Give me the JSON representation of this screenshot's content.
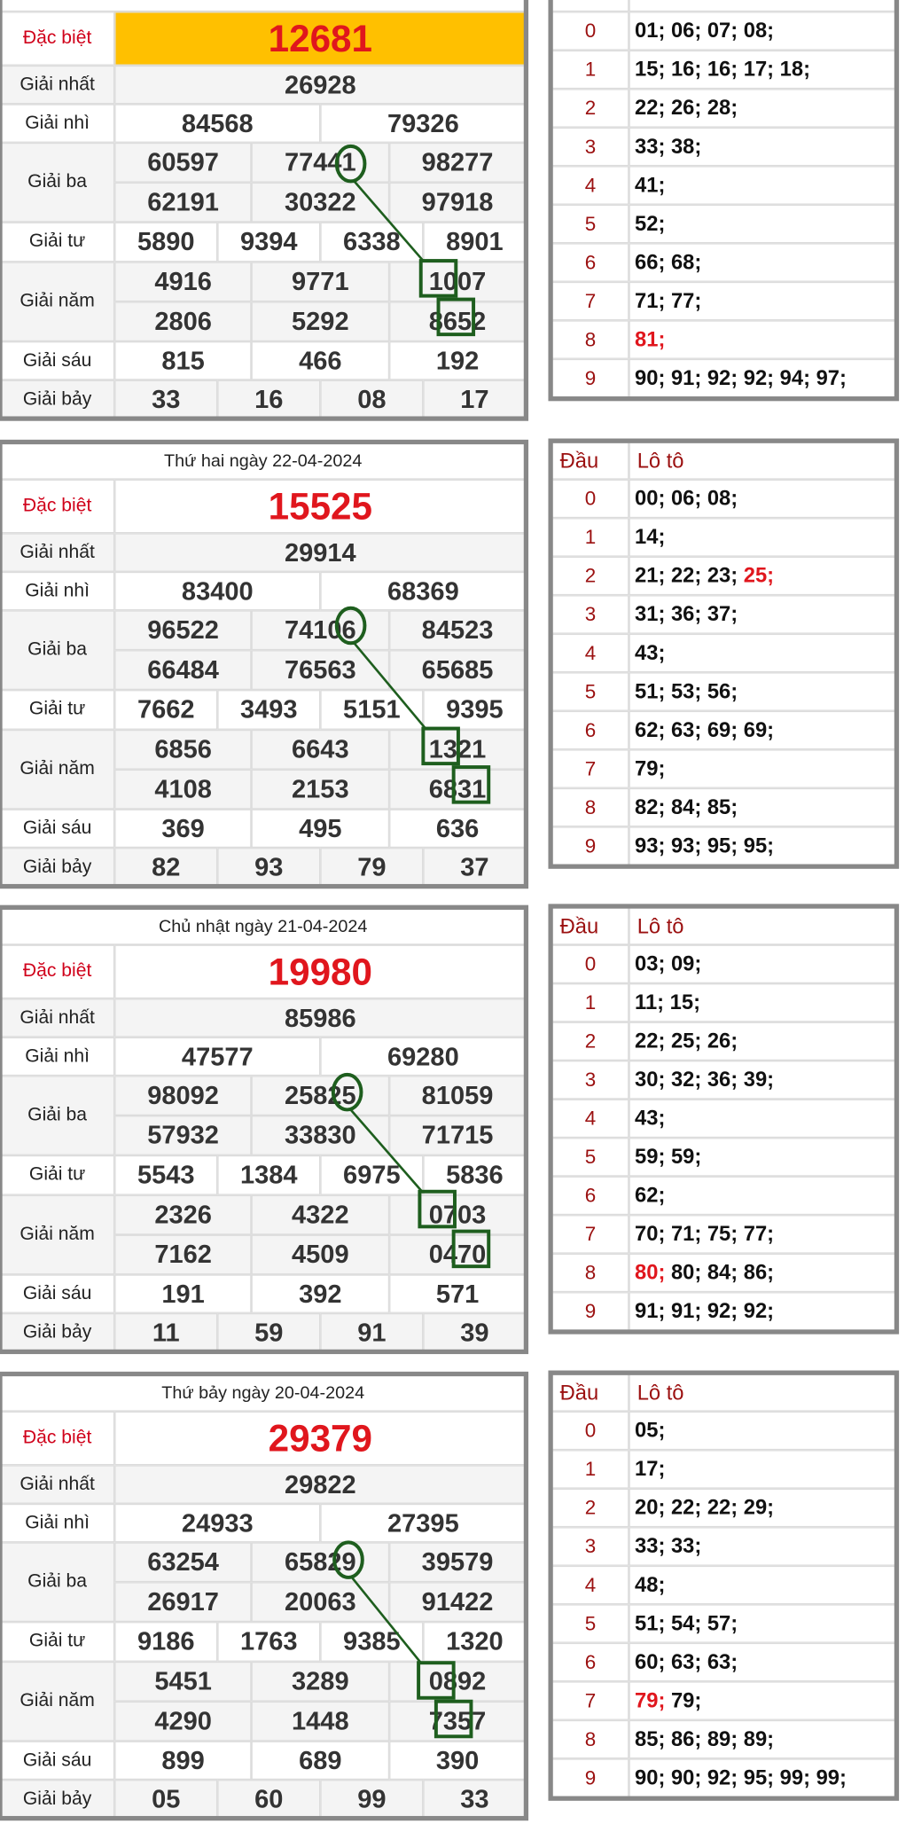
{
  "labels": [
    "Đặc biệt",
    "Giải nhất",
    "Giải nhì",
    "Giải ba",
    "Giải tư",
    "Giải năm",
    "Giải sáu",
    "Giải bảy"
  ],
  "loto_header": [
    "Đầu",
    "Lô tô"
  ],
  "blocks": [
    {
      "prizes": {
        "special": [
          "12681"
        ],
        "first": [
          "26928"
        ],
        "second": [
          "84568",
          "79326"
        ],
        "third": [
          "60597",
          "77441",
          "98277",
          "62191",
          "30322",
          "97918"
        ],
        "fourth": [
          "5890",
          "9394",
          "6338",
          "8901"
        ],
        "fifth": [
          "4916",
          "9771",
          "1007",
          "2806",
          "5292",
          "8652"
        ],
        "sixth": [
          "815",
          "466",
          "192"
        ],
        "seventh": [
          "33",
          "16",
          "08",
          "17"
        ]
      },
      "loto": [
        {
          "head": "0",
          "items": [
            "01;",
            "06;",
            "07;",
            "08;"
          ]
        },
        {
          "head": "1",
          "items": [
            "15;",
            "16;",
            "16;",
            "17;",
            "18;"
          ]
        },
        {
          "head": "2",
          "items": [
            "22;",
            "26;",
            "28;"
          ]
        },
        {
          "head": "3",
          "items": [
            "33;",
            "38;"
          ]
        },
        {
          "head": "4",
          "items": [
            "41;"
          ]
        },
        {
          "head": "5",
          "items": [
            "52;"
          ]
        },
        {
          "head": "6",
          "items": [
            "66;",
            "68;"
          ]
        },
        {
          "head": "7",
          "items": [
            "71;",
            "77;"
          ]
        },
        {
          "head": "8",
          "items": [
            "81;"
          ]
        },
        {
          "head": "9",
          "items": [
            "90;",
            "91;",
            "92;",
            "92;",
            "94;",
            "97;"
          ]
        }
      ]
    },
    {
      "title": "Thứ hai ngày 22-04-2024",
      "prizes": {
        "special": [
          "15525"
        ],
        "first": [
          "29914"
        ],
        "second": [
          "83400",
          "68369"
        ],
        "third": [
          "96522",
          "74106",
          "84523",
          "66484",
          "76563",
          "65685"
        ],
        "fourth": [
          "7662",
          "3493",
          "5151",
          "9395"
        ],
        "fifth": [
          "6856",
          "6643",
          "1321",
          "4108",
          "2153",
          "6831"
        ],
        "sixth": [
          "369",
          "495",
          "636"
        ],
        "seventh": [
          "82",
          "93",
          "79",
          "37"
        ]
      },
      "loto": [
        {
          "head": "0",
          "items": [
            "00;",
            "06;",
            "08;"
          ]
        },
        {
          "head": "1",
          "items": [
            "14;"
          ]
        },
        {
          "head": "2",
          "items": [
            "21;",
            "22;",
            "23;",
            "25;"
          ]
        },
        {
          "head": "3",
          "items": [
            "31;",
            "36;",
            "37;"
          ]
        },
        {
          "head": "4",
          "items": [
            "43;"
          ]
        },
        {
          "head": "5",
          "items": [
            "51;",
            "53;",
            "56;"
          ]
        },
        {
          "head": "6",
          "items": [
            "62;",
            "63;",
            "69;",
            "69;"
          ]
        },
        {
          "head": "7",
          "items": [
            "79;"
          ]
        },
        {
          "head": "8",
          "items": [
            "82;",
            "84;",
            "85;"
          ]
        },
        {
          "head": "9",
          "items": [
            "93;",
            "93;",
            "95;",
            "95;"
          ]
        }
      ]
    },
    {
      "title": "Chủ nhật ngày 21-04-2024",
      "prizes": {
        "special": [
          "19980"
        ],
        "first": [
          "85986"
        ],
        "second": [
          "47577",
          "69280"
        ],
        "third": [
          "98092",
          "25825",
          "81059",
          "57932",
          "33830",
          "71715"
        ],
        "fourth": [
          "5543",
          "1384",
          "6975",
          "5836"
        ],
        "fifth": [
          "2326",
          "4322",
          "0703",
          "7162",
          "4509",
          "0470"
        ],
        "sixth": [
          "191",
          "392",
          "571"
        ],
        "seventh": [
          "11",
          "59",
          "91",
          "39"
        ]
      },
      "loto": [
        {
          "head": "0",
          "items": [
            "03;",
            "09;"
          ]
        },
        {
          "head": "1",
          "items": [
            "11;",
            "15;"
          ]
        },
        {
          "head": "2",
          "items": [
            "22;",
            "25;",
            "26;"
          ]
        },
        {
          "head": "3",
          "items": [
            "30;",
            "32;",
            "36;",
            "39;"
          ]
        },
        {
          "head": "4",
          "items": [
            "43;"
          ]
        },
        {
          "head": "5",
          "items": [
            "59;",
            "59;"
          ]
        },
        {
          "head": "6",
          "items": [
            "62;"
          ]
        },
        {
          "head": "7",
          "items": [
            "70;",
            "71;",
            "75;",
            "77;"
          ]
        },
        {
          "head": "8",
          "items": [
            "80;",
            "80;",
            "84;",
            "86;"
          ]
        },
        {
          "head": "9",
          "items": [
            "91;",
            "91;",
            "92;",
            "92;"
          ]
        }
      ]
    },
    {
      "title": "Thứ bảy ngày 20-04-2024",
      "prizes": {
        "special": [
          "29379"
        ],
        "first": [
          "29822"
        ],
        "second": [
          "24933",
          "27395"
        ],
        "third": [
          "63254",
          "65829",
          "39579",
          "26917",
          "20063",
          "91422"
        ],
        "fourth": [
          "9186",
          "1763",
          "9385",
          "1320"
        ],
        "fifth": [
          "5451",
          "3289",
          "0892",
          "4290",
          "1448",
          "7357"
        ],
        "sixth": [
          "899",
          "689",
          "390"
        ],
        "seventh": [
          "05",
          "60",
          "99",
          "33"
        ]
      },
      "loto": [
        {
          "head": "0",
          "items": [
            "05;"
          ]
        },
        {
          "head": "1",
          "items": [
            "17;"
          ]
        },
        {
          "head": "2",
          "items": [
            "20;",
            "22;",
            "22;",
            "29;"
          ]
        },
        {
          "head": "3",
          "items": [
            "33;",
            "33;"
          ]
        },
        {
          "head": "4",
          "items": [
            "48;"
          ]
        },
        {
          "head": "5",
          "items": [
            "51;",
            "54;",
            "57;"
          ]
        },
        {
          "head": "6",
          "items": [
            "60;",
            "63;",
            "63;"
          ]
        },
        {
          "head": "7",
          "items": [
            "79;",
            "79;"
          ]
        },
        {
          "head": "8",
          "items": [
            "85;",
            "86;",
            "89;",
            "89;"
          ]
        },
        {
          "head": "9",
          "items": [
            "90;",
            "90;",
            "92;",
            "95;",
            "99;",
            "99;"
          ]
        }
      ]
    }
  ]
}
